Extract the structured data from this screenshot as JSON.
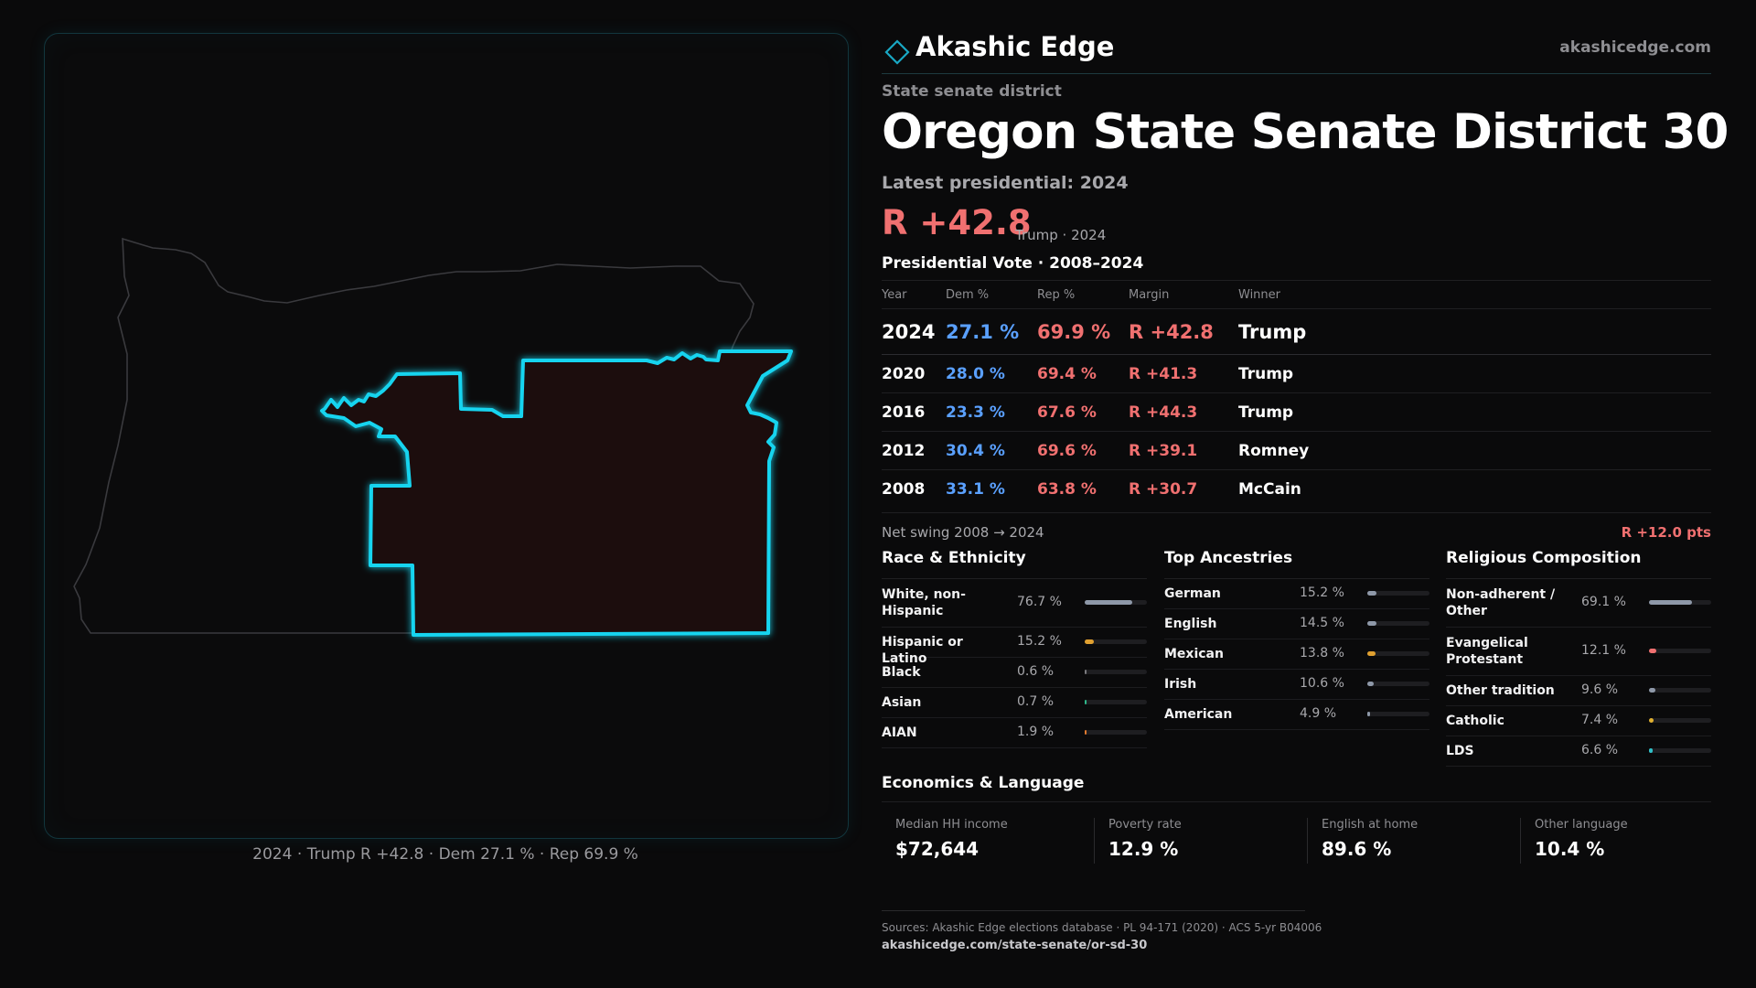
{
  "brand": {
    "name": "Akashic Edge",
    "url": "akashicedge.com",
    "icon": "diamond-icon"
  },
  "kicker": "State senate district",
  "title": "Oregon State Senate District 30",
  "latest_label": "Latest presidential: 2024",
  "headline": {
    "margin": "R +42.8",
    "sub": "Trump · 2024"
  },
  "map": {
    "caption": "2024 · Trump R +42.8 · Dem 27.1 % · Rep 69.9 %",
    "district_color": "#19d4ef"
  },
  "presidential": {
    "title": "Presidential Vote · 2008–2024",
    "headers": {
      "year": "Year",
      "dem": "Dem %",
      "rep": "Rep %",
      "margin": "Margin",
      "winner": "Winner"
    },
    "rows": [
      {
        "year": "2024",
        "dem": "27.1 %",
        "rep": "69.9 %",
        "margin": "R +42.8",
        "winner": "Trump"
      },
      {
        "year": "2020",
        "dem": "28.0 %",
        "rep": "69.4 %",
        "margin": "R +41.3",
        "winner": "Trump"
      },
      {
        "year": "2016",
        "dem": "23.3 %",
        "rep": "67.6 %",
        "margin": "R +44.3",
        "winner": "Trump"
      },
      {
        "year": "2012",
        "dem": "30.4 %",
        "rep": "69.6 %",
        "margin": "R +39.1",
        "winner": "Romney"
      },
      {
        "year": "2008",
        "dem": "33.1 %",
        "rep": "63.8 %",
        "margin": "R +30.7",
        "winner": "McCain"
      }
    ],
    "swing_label": "Net swing 2008 → 2024",
    "swing_value": "R +12.0 pts"
  },
  "race": {
    "title": "Race & Ethnicity",
    "rows": [
      {
        "label": "White, non-Hispanic",
        "pct": "76.7 %",
        "share": 0.767,
        "color": "#8e98a8"
      },
      {
        "label": "Hispanic or Latino",
        "pct": "15.2 %",
        "share": 0.152,
        "color": "#e0a030"
      },
      {
        "label": "Black",
        "pct": "0.6 %",
        "share": 0.006,
        "color": "#7a7a7e"
      },
      {
        "label": "Asian",
        "pct": "0.7 %",
        "share": 0.007,
        "color": "#2fb88a"
      },
      {
        "label": "AIAN",
        "pct": "1.9 %",
        "share": 0.019,
        "color": "#e07a30"
      }
    ]
  },
  "ancestry": {
    "title": "Top Ancestries",
    "rows": [
      {
        "label": "German",
        "pct": "15.2 %",
        "share": 0.152,
        "color": "#8e98a8"
      },
      {
        "label": "English",
        "pct": "14.5 %",
        "share": 0.145,
        "color": "#8e98a8"
      },
      {
        "label": "Mexican",
        "pct": "13.8 %",
        "share": 0.138,
        "color": "#e0a030"
      },
      {
        "label": "Irish",
        "pct": "10.6 %",
        "share": 0.106,
        "color": "#8e98a8"
      },
      {
        "label": "American",
        "pct": "4.9 %",
        "share": 0.049,
        "color": "#8e98a8"
      }
    ]
  },
  "religion": {
    "title": "Religious Composition",
    "rows": [
      {
        "label": "Non-adherent / Other",
        "pct": "69.1 %",
        "share": 0.691,
        "color": "#8e98a8"
      },
      {
        "label": "Evangelical Protestant",
        "pct": "12.1 %",
        "share": 0.121,
        "color": "#f07070"
      },
      {
        "label": "Other tradition",
        "pct": "9.6 %",
        "share": 0.096,
        "color": "#8e98a8"
      },
      {
        "label": "Catholic",
        "pct": "7.4 %",
        "share": 0.074,
        "color": "#e0b030"
      },
      {
        "label": "LDS",
        "pct": "6.6 %",
        "share": 0.066,
        "color": "#30c0c8"
      }
    ]
  },
  "economics": {
    "title": "Economics & Language",
    "items": [
      {
        "label": "Median HH income",
        "value": "$72,644"
      },
      {
        "label": "Poverty rate",
        "value": "12.9 %"
      },
      {
        "label": "English at home",
        "value": "89.6 %"
      },
      {
        "label": "Other language",
        "value": "10.4 %"
      }
    ]
  },
  "sources": {
    "line1": "Sources: Akashic Edge elections database · PL 94-171 (2020) · ACS 5-yr B04006",
    "line2": "akashicedge.com/state-senate/or-sd-30"
  }
}
